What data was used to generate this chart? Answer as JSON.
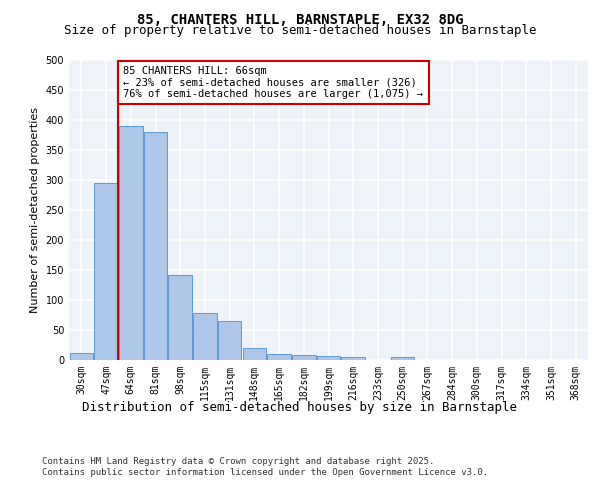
{
  "title1": "85, CHANTERS HILL, BARNSTAPLE, EX32 8DG",
  "title2": "Size of property relative to semi-detached houses in Barnstaple",
  "xlabel": "Distribution of semi-detached houses by size in Barnstaple",
  "ylabel": "Number of semi-detached properties",
  "categories": [
    "30sqm",
    "47sqm",
    "64sqm",
    "81sqm",
    "98sqm",
    "115sqm",
    "131sqm",
    "148sqm",
    "165sqm",
    "182sqm",
    "199sqm",
    "216sqm",
    "233sqm",
    "250sqm",
    "267sqm",
    "284sqm",
    "300sqm",
    "317sqm",
    "334sqm",
    "351sqm",
    "368sqm"
  ],
  "values": [
    12,
    295,
    390,
    380,
    142,
    78,
    65,
    20,
    10,
    8,
    7,
    5,
    0,
    5,
    0,
    0,
    0,
    0,
    0,
    0,
    0
  ],
  "bar_color": "#aec6e8",
  "bar_edge_color": "#5b9bd5",
  "vline_color": "#cc0000",
  "annotation_text": "85 CHANTERS HILL: 66sqm\n← 23% of semi-detached houses are smaller (326)\n76% of semi-detached houses are larger (1,075) →",
  "annotation_box_color": "#cc0000",
  "ylim": [
    0,
    500
  ],
  "yticks": [
    0,
    50,
    100,
    150,
    200,
    250,
    300,
    350,
    400,
    450,
    500
  ],
  "footer": "Contains HM Land Registry data © Crown copyright and database right 2025.\nContains public sector information licensed under the Open Government Licence v3.0.",
  "bg_color": "#eef2f9",
  "grid_color": "#ffffff",
  "title1_fontsize": 10,
  "title2_fontsize": 9,
  "tick_fontsize": 7,
  "ylabel_fontsize": 8,
  "xlabel_fontsize": 9,
  "footer_fontsize": 6.5,
  "annotation_fontsize": 7.5
}
